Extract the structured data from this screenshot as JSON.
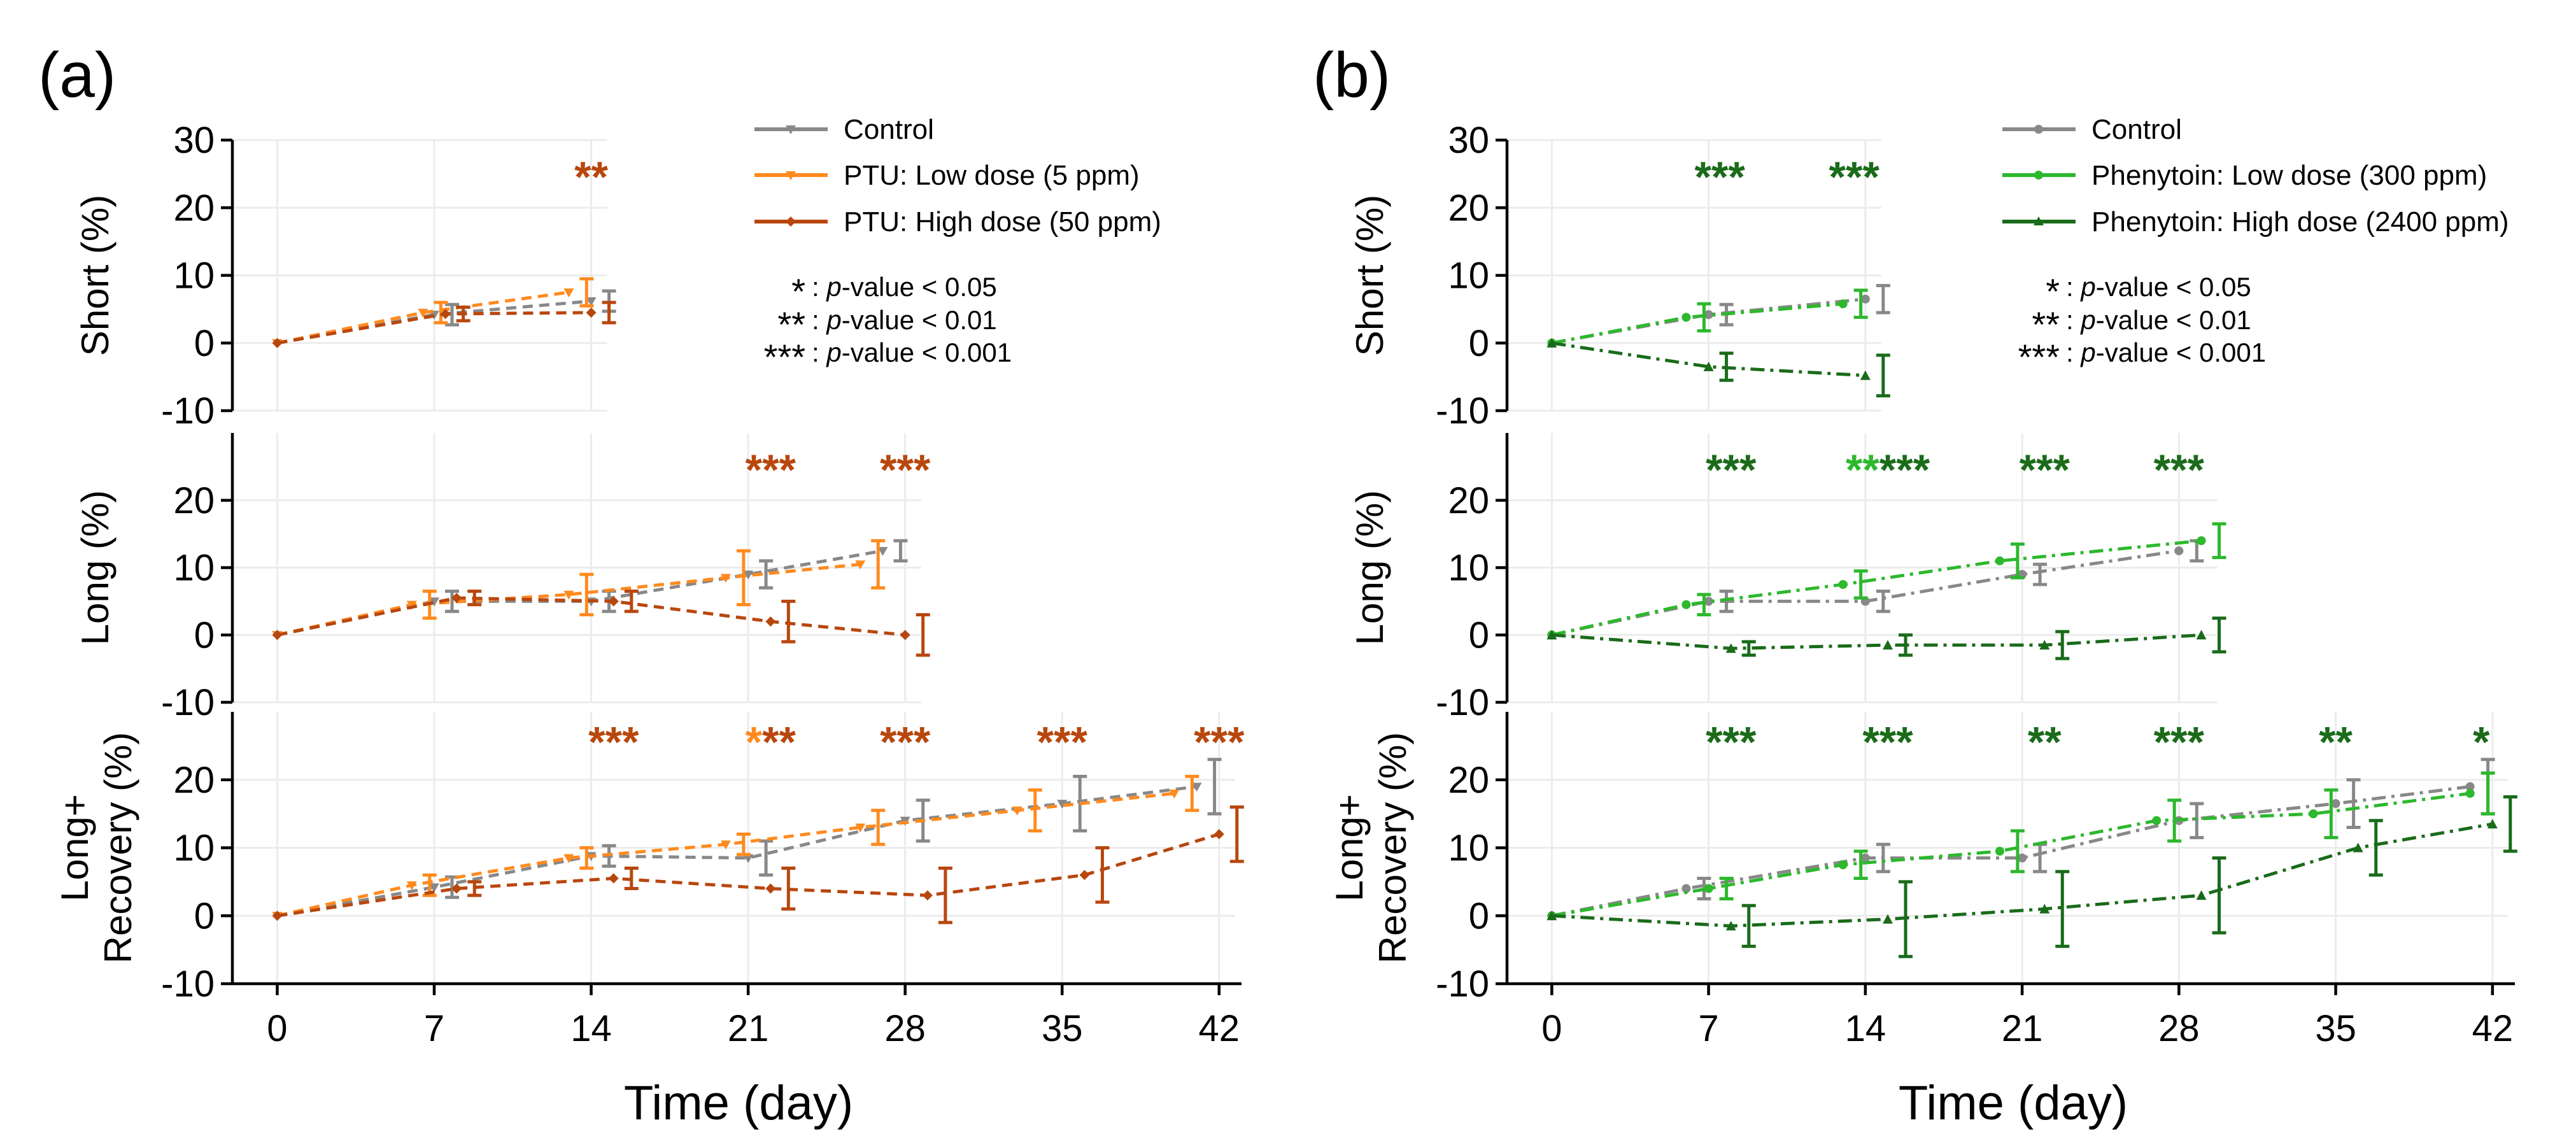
{
  "panels": [
    {
      "label": "(a)",
      "xlabel": "Time (day)",
      "legend": {
        "entries": [
          "Control",
          "PTU: Low dose (5 ppm)",
          "PTU: High dose (50 ppm)"
        ],
        "sig_keys": [
          {
            "stars": "*",
            "prefix": ": ",
            "p": "p",
            "suffix": "-value < 0.05"
          },
          {
            "stars": "**",
            "prefix": ": ",
            "p": "p",
            "suffix": "-value < 0.01"
          },
          {
            "stars": "***",
            "prefix": ": ",
            "p": "p",
            "suffix": "-value < 0.001"
          }
        ]
      }
    },
    {
      "label": "(b)",
      "xlabel": "Time (day)",
      "legend": {
        "entries": [
          "Control",
          "Phenytoin: Low dose (300 ppm)",
          "Phenytoin: High dose (2400 ppm)"
        ],
        "sig_keys": [
          {
            "stars": "*",
            "prefix": ": ",
            "p": "p",
            "suffix": "-value < 0.05"
          },
          {
            "stars": "**",
            "prefix": ": ",
            "p": "p",
            "suffix": "-value < 0.01"
          },
          {
            "stars": "***",
            "prefix": ": ",
            "p": "p",
            "suffix": "-value < 0.001"
          }
        ]
      }
    }
  ],
  "chart_data": [
    {
      "panel": "a",
      "type": "line",
      "xlabel": "Time (day)",
      "xticks": [
        0,
        7,
        14,
        21,
        28,
        35,
        42
      ],
      "xlim": [
        -2,
        43
      ],
      "colors": {
        "control": "#888888",
        "low": "#ff8a1e",
        "high": "#b8470e"
      },
      "subplots": [
        {
          "ylabel": "Short (%)",
          "ylim": [
            -10,
            30
          ],
          "yticks": [
            -10,
            0,
            10,
            20,
            30
          ],
          "series": [
            {
              "name": "Control",
              "color": "#888888",
              "x": [
                0,
                7,
                14
              ],
              "y": [
                0,
                4.2,
                6.2
              ],
              "err": [
                0,
                1.5,
                1.5
              ]
            },
            {
              "name": "PTU: Low dose (5 ppm)",
              "color": "#ff8a1e",
              "x": [
                0,
                6.5,
                13
              ],
              "y": [
                0,
                4.5,
                7.5
              ],
              "err": [
                0,
                1.5,
                2.0
              ]
            },
            {
              "name": "PTU: High dose (50 ppm)",
              "color": "#b8470e",
              "x": [
                0,
                7.5,
                14
              ],
              "y": [
                0,
                4.3,
                4.5
              ],
              "err": [
                0,
                1.0,
                1.5
              ]
            }
          ],
          "annotations": [
            {
              "x": 14,
              "y": 25,
              "parts": [
                {
                  "text": "**",
                  "color": "#b8470e"
                }
              ]
            }
          ]
        },
        {
          "ylabel": "Long (%)",
          "ylim": [
            -10,
            30
          ],
          "yticks": [
            -10,
            0,
            10,
            20
          ],
          "series": [
            {
              "name": "Control",
              "color": "#888888",
              "x": [
                0,
                7,
                14,
                21,
                27
              ],
              "y": [
                0,
                5.0,
                5.0,
                9.0,
                12.5
              ],
              "err": [
                0,
                1.5,
                1.5,
                2.0,
                1.5
              ]
            },
            {
              "name": "PTU: Low dose (5 ppm)",
              "color": "#ff8a1e",
              "x": [
                0,
                6,
                13,
                20,
                26
              ],
              "y": [
                0,
                4.5,
                6.0,
                8.5,
                10.5
              ],
              "err": [
                0,
                2.0,
                3.0,
                4.0,
                3.5
              ]
            },
            {
              "name": "PTU: High dose (50 ppm)",
              "color": "#b8470e",
              "x": [
                0,
                8,
                15,
                22,
                28
              ],
              "y": [
                0,
                5.5,
                5.0,
                2.0,
                0.0
              ],
              "err": [
                0,
                1.0,
                1.5,
                3.0,
                3.0
              ]
            }
          ],
          "annotations": [
            {
              "x": 22,
              "y": 25,
              "parts": [
                {
                  "text": "***",
                  "color": "#b8470e"
                }
              ]
            },
            {
              "x": 28,
              "y": 25,
              "parts": [
                {
                  "text": "***",
                  "color": "#b8470e"
                }
              ]
            }
          ]
        },
        {
          "ylabel": "Long+\nRecovery (%)",
          "ylim": [
            -10,
            30
          ],
          "yticks": [
            -10,
            0,
            10,
            20
          ],
          "series": [
            {
              "name": "Control",
              "color": "#888888",
              "x": [
                0,
                7,
                14,
                21,
                28,
                35,
                41
              ],
              "y": [
                0,
                4.2,
                8.8,
                8.5,
                14.0,
                16.5,
                19.0
              ],
              "err": [
                0,
                1.5,
                1.5,
                2.5,
                3.0,
                4.0,
                4.0
              ]
            },
            {
              "name": "PTU: Low dose (5 ppm)",
              "color": "#ff8a1e",
              "x": [
                0,
                6,
                13,
                20,
                26,
                33,
                40
              ],
              "y": [
                0,
                4.5,
                8.5,
                10.5,
                13.0,
                15.5,
                18.0
              ],
              "err": [
                0,
                1.5,
                1.5,
                1.5,
                2.5,
                3.0,
                2.5
              ]
            },
            {
              "name": "PTU: High dose (50 ppm)",
              "color": "#b8470e",
              "x": [
                0,
                8,
                15,
                22,
                29,
                36,
                42
              ],
              "y": [
                0,
                4.0,
                5.5,
                4.0,
                3.0,
                6.0,
                12.0
              ],
              "err": [
                0,
                1.0,
                1.5,
                3.0,
                4.0,
                4.0,
                4.0
              ]
            }
          ],
          "annotations": [
            {
              "x": 15,
              "y": 26,
              "parts": [
                {
                  "text": "***",
                  "color": "#b8470e"
                }
              ]
            },
            {
              "x": 22,
              "parts": [
                {
                  "text": "*",
                  "color": "#ff8a1e"
                },
                {
                  "text": "**",
                  "color": "#b8470e"
                }
              ],
              "y": 26
            },
            {
              "x": 28,
              "y": 26,
              "parts": [
                {
                  "text": "***",
                  "color": "#b8470e"
                }
              ]
            },
            {
              "x": 35,
              "y": 26,
              "parts": [
                {
                  "text": "***",
                  "color": "#b8470e"
                }
              ]
            },
            {
              "x": 42,
              "y": 26,
              "parts": [
                {
                  "text": "***",
                  "color": "#b8470e"
                }
              ]
            }
          ]
        }
      ]
    },
    {
      "panel": "b",
      "type": "line",
      "xlabel": "Time (day)",
      "xticks": [
        0,
        7,
        14,
        21,
        28,
        35,
        42
      ],
      "xlim": [
        -2,
        43
      ],
      "colors": {
        "control": "#888888",
        "low": "#2db82d",
        "high": "#1a6b1a"
      },
      "subplots": [
        {
          "ylabel": "Short (%)",
          "ylim": [
            -10,
            30
          ],
          "yticks": [
            -10,
            0,
            10,
            20,
            30
          ],
          "series": [
            {
              "name": "Control",
              "color": "#888888",
              "x": [
                0,
                7,
                14
              ],
              "y": [
                0,
                4.2,
                6.5
              ],
              "err": [
                0,
                1.5,
                2.0
              ]
            },
            {
              "name": "Phenytoin: Low dose (300 ppm)",
              "color": "#2db82d",
              "x": [
                0,
                6,
                13
              ],
              "y": [
                0,
                3.8,
                5.8
              ],
              "err": [
                0,
                2.0,
                2.0
              ]
            },
            {
              "name": "Phenytoin: High dose (2400 ppm)",
              "color": "#1a6b1a",
              "x": [
                0,
                7,
                14
              ],
              "y": [
                0,
                -3.5,
                -4.8
              ],
              "err": [
                0,
                2.0,
                3.0
              ]
            }
          ],
          "annotations": [
            {
              "x": 7.5,
              "y": 25,
              "parts": [
                {
                  "text": "***",
                  "color": "#1a6b1a"
                }
              ]
            },
            {
              "x": 13.5,
              "y": 25,
              "parts": [
                {
                  "text": "***",
                  "color": "#1a6b1a"
                }
              ]
            }
          ]
        },
        {
          "ylabel": "Long (%)",
          "ylim": [
            -10,
            30
          ],
          "yticks": [
            -10,
            0,
            10,
            20
          ],
          "series": [
            {
              "name": "Control",
              "color": "#888888",
              "x": [
                0,
                7,
                14,
                21,
                28
              ],
              "y": [
                0,
                5.0,
                5.0,
                9.0,
                12.5
              ],
              "err": [
                0,
                1.5,
                1.5,
                1.5,
                1.5
              ]
            },
            {
              "name": "Phenytoin: Low dose (300 ppm)",
              "color": "#2db82d",
              "x": [
                0,
                6,
                13,
                20,
                29
              ],
              "y": [
                0,
                4.5,
                7.5,
                11.0,
                14.0
              ],
              "err": [
                0,
                1.5,
                2.0,
                2.5,
                2.5
              ]
            },
            {
              "name": "Phenytoin: High dose (2400 ppm)",
              "color": "#1a6b1a",
              "x": [
                0,
                8,
                15,
                22,
                29
              ],
              "y": [
                0,
                -2.0,
                -1.5,
                -1.5,
                0.0
              ],
              "err": [
                0,
                1.0,
                1.5,
                2.0,
                2.5
              ]
            }
          ],
          "annotations": [
            {
              "x": 8,
              "y": 25,
              "parts": [
                {
                  "text": "***",
                  "color": "#1a6b1a"
                }
              ]
            },
            {
              "x": 15,
              "y": 25,
              "parts": [
                {
                  "text": "**",
                  "color": "#2db82d"
                },
                {
                  "text": "***",
                  "color": "#1a6b1a"
                }
              ]
            },
            {
              "x": 22,
              "y": 25,
              "parts": [
                {
                  "text": "***",
                  "color": "#1a6b1a"
                }
              ]
            },
            {
              "x": 28,
              "y": 25,
              "parts": [
                {
                  "text": "***",
                  "color": "#1a6b1a"
                }
              ]
            }
          ]
        },
        {
          "ylabel": "Long+\nRecovery (%)",
          "ylim": [
            -10,
            30
          ],
          "yticks": [
            -10,
            0,
            10,
            20
          ],
          "series": [
            {
              "name": "Control",
              "color": "#888888",
              "x": [
                0,
                6,
                14,
                21,
                28,
                35,
                41
              ],
              "y": [
                0,
                4.0,
                8.5,
                8.5,
                14.0,
                16.5,
                19.0
              ],
              "err": [
                0,
                1.5,
                2.0,
                2.0,
                2.5,
                3.5,
                4.0
              ]
            },
            {
              "name": "Phenytoin: Low dose (300 ppm)",
              "color": "#2db82d",
              "x": [
                0,
                7,
                13,
                20,
                27,
                34,
                41
              ],
              "y": [
                0,
                4.0,
                7.5,
                9.5,
                14.0,
                15.0,
                18.0
              ],
              "err": [
                0,
                1.5,
                2.0,
                3.0,
                3.0,
                3.5,
                3.0
              ]
            },
            {
              "name": "Phenytoin: High dose (2400 ppm)",
              "color": "#1a6b1a",
              "x": [
                0,
                8,
                15,
                22,
                29,
                36,
                42
              ],
              "y": [
                0,
                -1.5,
                -0.5,
                1.0,
                3.0,
                10.0,
                13.5
              ],
              "err": [
                0,
                3.0,
                5.5,
                5.5,
                5.5,
                4.0,
                4.0
              ]
            }
          ],
          "annotations": [
            {
              "x": 8,
              "y": 26,
              "parts": [
                {
                  "text": "***",
                  "color": "#1a6b1a"
                }
              ]
            },
            {
              "x": 15,
              "y": 26,
              "parts": [
                {
                  "text": "***",
                  "color": "#1a6b1a"
                }
              ]
            },
            {
              "x": 22,
              "y": 26,
              "parts": [
                {
                  "text": "**",
                  "color": "#1a6b1a"
                }
              ]
            },
            {
              "x": 28,
              "y": 26,
              "parts": [
                {
                  "text": "***",
                  "color": "#1a6b1a"
                }
              ]
            },
            {
              "x": 35,
              "y": 26,
              "parts": [
                {
                  "text": "**",
                  "color": "#1a6b1a"
                }
              ]
            },
            {
              "x": 41.5,
              "y": 26,
              "parts": [
                {
                  "text": "*",
                  "color": "#1a6b1a"
                }
              ]
            }
          ]
        }
      ]
    }
  ]
}
